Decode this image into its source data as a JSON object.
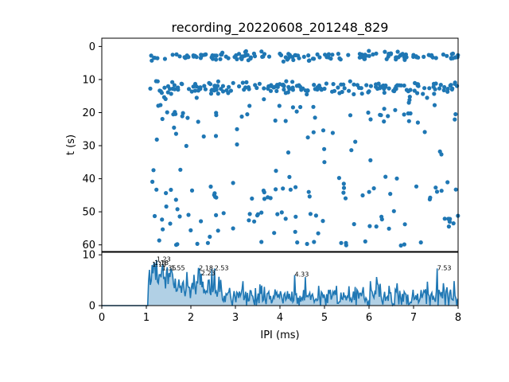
{
  "title": "recording_20220608_201248_829",
  "colors": {
    "series": "#1f77b4",
    "axes": "#000000",
    "background": "#ffffff"
  },
  "chart_data": [
    {
      "type": "scatter",
      "name": "raster",
      "title": "recording_20220608_201248_829",
      "xlabel": "",
      "ylabel": "t (s)",
      "xlim": [
        0,
        8
      ],
      "ylim": [
        62,
        -2.5
      ],
      "y_inverted": true,
      "x_ticks_shown": false,
      "yticks": [
        "0",
        "10",
        "20",
        "30",
        "40",
        "50",
        "60"
      ],
      "ytick_values": [
        0,
        10,
        20,
        30,
        40,
        50,
        60
      ],
      "grid": false,
      "clusters": [
        {
          "t_center": 3.0,
          "t_spread": 1.0,
          "x_range": [
            1.08,
            8.0
          ],
          "count": 150
        },
        {
          "t_center": 12.5,
          "t_spread": 1.2,
          "x_range": [
            1.08,
            8.0
          ],
          "count": 180
        },
        {
          "t_center": 20.0,
          "t_spread": 5.0,
          "x_range": [
            1.1,
            8.0
          ],
          "count": 60
        },
        {
          "t_center": 30.0,
          "t_spread": 5.0,
          "x_range": [
            1.1,
            8.0
          ],
          "count": 18
        },
        {
          "t_center": 44.0,
          "t_spread": 3.0,
          "x_range": [
            1.1,
            8.0
          ],
          "count": 45
        },
        {
          "t_center": 53.0,
          "t_spread": 3.0,
          "x_range": [
            1.1,
            8.0
          ],
          "count": 45
        },
        {
          "t_center": 59.5,
          "t_spread": 0.6,
          "x_range": [
            1.1,
            8.0
          ],
          "count": 16
        }
      ]
    },
    {
      "type": "line",
      "name": "ipi-histogram",
      "xlabel": "IPI (ms)",
      "ylabel": "",
      "xlim": [
        0,
        8
      ],
      "ylim": [
        0,
        10.5
      ],
      "xticks": [
        "0",
        "1",
        "2",
        "3",
        "4",
        "5",
        "6",
        "7",
        "8"
      ],
      "xtick_values": [
        0,
        1,
        2,
        3,
        4,
        5,
        6,
        7,
        8
      ],
      "yticks": [
        "0",
        "10"
      ],
      "ytick_values": [
        0,
        10
      ],
      "grid": false,
      "onset_x": 1.05,
      "bins": 400,
      "peaks": [
        {
          "x": 1.13,
          "y": 8.0,
          "label": "1.13"
        },
        {
          "x": 1.18,
          "y": 8.3,
          "label": "1.18"
        },
        {
          "x": 1.23,
          "y": 9.0,
          "label": "1.23"
        },
        {
          "x": 1.35,
          "y": 7.3,
          "label": "1.35"
        },
        {
          "x": 1.55,
          "y": 7.3,
          "label": "1.55"
        },
        {
          "x": 2.18,
          "y": 7.3,
          "label": "2.18"
        },
        {
          "x": 2.23,
          "y": 6.3,
          "label": "2.23"
        },
        {
          "x": 2.53,
          "y": 7.3,
          "label": "2.53"
        },
        {
          "x": 4.33,
          "y": 6.0,
          "label": "4.33"
        },
        {
          "x": 7.53,
          "y": 7.3,
          "label": "7.53"
        }
      ]
    }
  ]
}
